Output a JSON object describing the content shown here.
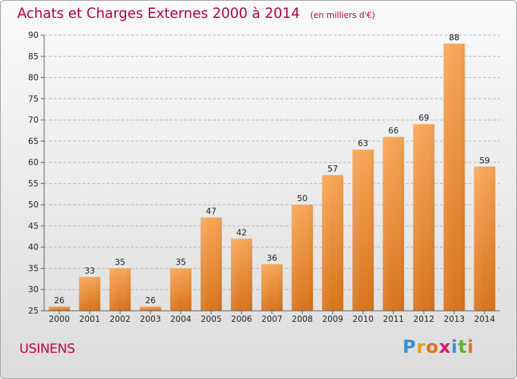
{
  "header": {
    "title": "Achats et Charges Externes 2000 à 2014",
    "subtitle": "(en milliers d'€)"
  },
  "footer": {
    "commune": "USINENS",
    "brand": [
      "P",
      "r",
      "o",
      "x",
      "i",
      "t",
      "i"
    ],
    "brand_colors": [
      "#3a8fd0",
      "#e0a020",
      "#e07020",
      "#d02060",
      "#3a8fd0",
      "#60b030",
      "#e07020"
    ]
  },
  "colors": {
    "bar_top": "#f7a657",
    "bar_bottom": "#d9731c",
    "grid": "#b0b0b0"
  },
  "chart_data": {
    "type": "bar",
    "title": "Achats et Charges Externes 2000 à 2014",
    "subtitle": "(en milliers d'€)",
    "xlabel": "",
    "ylabel": "",
    "categories": [
      "2000",
      "2001",
      "2002",
      "2003",
      "2004",
      "2005",
      "2006",
      "2007",
      "2008",
      "2009",
      "2010",
      "2011",
      "2012",
      "2013",
      "2014"
    ],
    "values": [
      26,
      33,
      35,
      26,
      35,
      47,
      42,
      36,
      50,
      57,
      63,
      66,
      69,
      88,
      59
    ],
    "ylim": [
      25,
      90
    ],
    "yticks": [
      25,
      30,
      35,
      40,
      45,
      50,
      55,
      60,
      65,
      70,
      75,
      80,
      85,
      90
    ],
    "grid": true
  }
}
